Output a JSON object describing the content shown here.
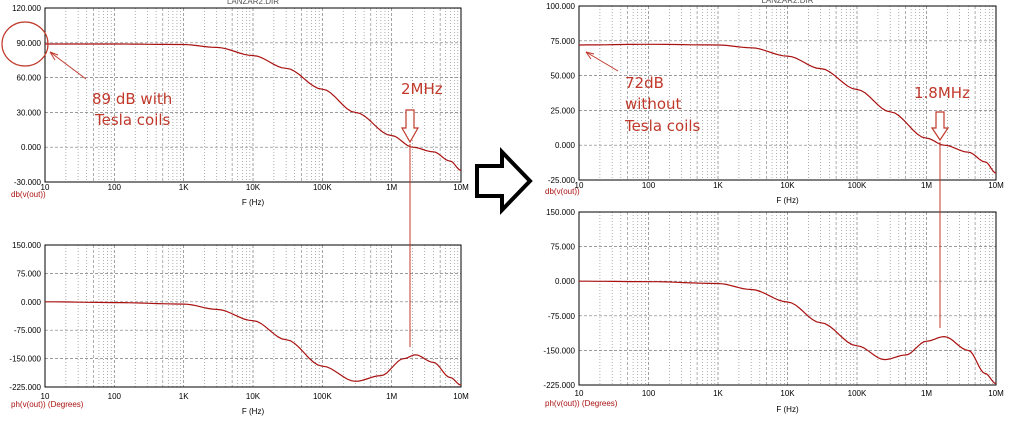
{
  "chart_data": [
    {
      "type": "line",
      "title": "LANZAR2.DIR",
      "xlabel": "F (Hz)",
      "ylabel": "db(v(out))",
      "x_scale": "log",
      "xlim": [
        10,
        10000000
      ],
      "ylim": [
        -30,
        120
      ],
      "x_ticks": [
        "10",
        "100",
        "1K",
        "10K",
        "100K",
        "1M",
        "10M"
      ],
      "y_ticks": [
        "120.000",
        "90.000",
        "60.000",
        "30.000",
        "0.000",
        "-30.000"
      ],
      "grid": true,
      "series": [
        {
          "x": [
            10,
            100,
            1000,
            3000,
            10000,
            30000,
            100000,
            300000,
            1000000,
            2000000,
            4000000,
            7000000,
            10000000
          ],
          "values": [
            89,
            89,
            88.5,
            86,
            79,
            68,
            50,
            30,
            10,
            0,
            -4,
            -12,
            -20
          ]
        }
      ],
      "annotations": [
        "89 dB with",
        "Tesla coils",
        "2MHz"
      ]
    },
    {
      "type": "line",
      "xlabel": "F (Hz)",
      "ylabel": "ph(v(out)) (Degrees)",
      "x_scale": "log",
      "xlim": [
        10,
        10000000
      ],
      "ylim": [
        -225,
        150
      ],
      "x_ticks": [
        "10",
        "100",
        "1K",
        "10K",
        "100K",
        "1M",
        "10M"
      ],
      "y_ticks": [
        "150.000",
        "75.000",
        "0.000",
        "-75.000",
        "-150.000",
        "-225.000"
      ],
      "grid": true,
      "series": [
        {
          "x": [
            10,
            100,
            1000,
            3000,
            10000,
            30000,
            100000,
            300000,
            700000,
            1500000,
            2200000,
            4000000,
            7000000,
            10000000
          ],
          "values": [
            0,
            -2,
            -6,
            -20,
            -50,
            -100,
            -170,
            -210,
            -195,
            -150,
            -140,
            -160,
            -200,
            -220
          ]
        }
      ]
    },
    {
      "type": "line",
      "title": "LANZAR2.DIR",
      "xlabel": "F (Hz)",
      "ylabel": "db(v(out))",
      "x_scale": "log",
      "xlim": [
        10,
        10000000
      ],
      "ylim": [
        -25,
        100
      ],
      "x_ticks": [
        "10",
        "100",
        "1K",
        "10K",
        "100K",
        "1M",
        "10M"
      ],
      "y_ticks": [
        "100.000",
        "75.000",
        "50.000",
        "25.000",
        "0.000",
        "-25.000"
      ],
      "grid": true,
      "series": [
        {
          "x": [
            10,
            100,
            1000,
            3000,
            10000,
            30000,
            100000,
            300000,
            1000000,
            1800000,
            4000000,
            7000000,
            10000000
          ],
          "values": [
            72,
            72.5,
            72,
            70,
            64,
            55,
            40,
            24,
            5,
            0,
            -5,
            -12,
            -20
          ]
        }
      ],
      "annotations": [
        "72dB",
        "without",
        "Tesla coils",
        "1.8MHz"
      ]
    },
    {
      "type": "line",
      "xlabel": "F (Hz)",
      "ylabel": "ph(v(out)) (Degrees)",
      "x_scale": "log",
      "xlim": [
        10,
        10000000
      ],
      "ylim": [
        -225,
        150
      ],
      "x_ticks": [
        "10",
        "100",
        "1K",
        "10K",
        "100K",
        "1M",
        "10M"
      ],
      "y_ticks": [
        "150.000",
        "75.000",
        "0.000",
        "-75.000",
        "-150.000",
        "-225.000"
      ],
      "grid": true,
      "series": [
        {
          "x": [
            10,
            100,
            1000,
            3000,
            10000,
            30000,
            100000,
            250000,
            500000,
            1000000,
            1800000,
            4000000,
            7000000,
            10000000
          ],
          "values": [
            0,
            -1,
            -5,
            -18,
            -45,
            -90,
            -140,
            -170,
            -160,
            -130,
            -120,
            -150,
            -200,
            -222
          ]
        }
      ]
    }
  ],
  "colors": {
    "curve": "#aa1111",
    "annotation": "#c0392b",
    "grid": "#7a7a7a",
    "frame": "#000000",
    "arrow": "#000000"
  }
}
